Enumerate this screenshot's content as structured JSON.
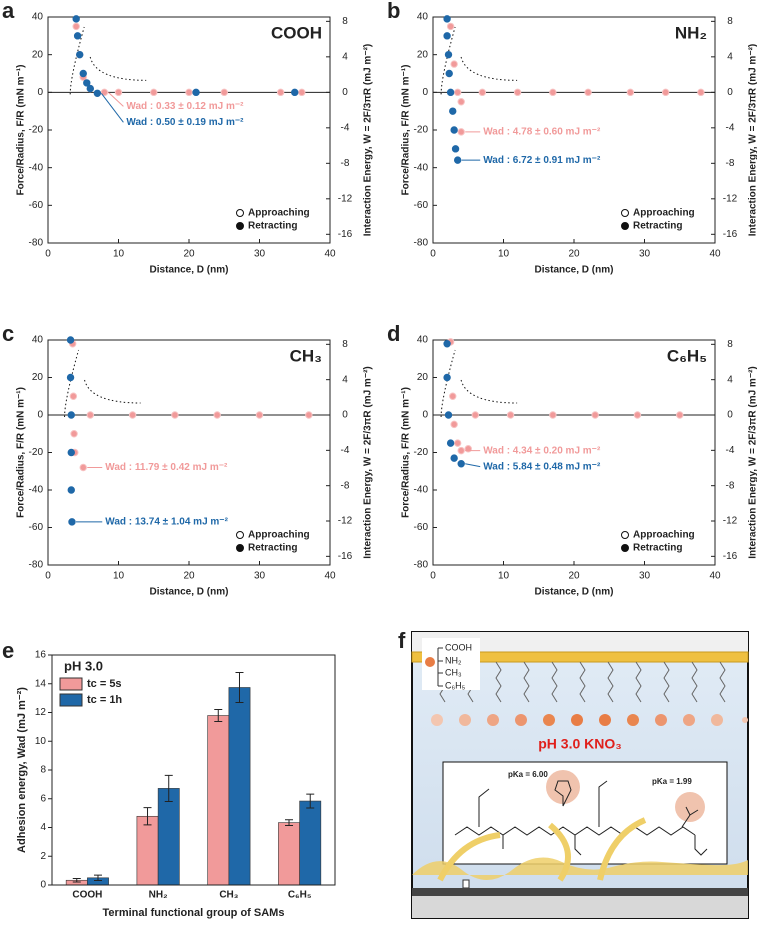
{
  "chart_data": [
    {
      "type": "scatter",
      "panel": "a",
      "label": "COOH",
      "xlabel": "Distance, D (nm)",
      "ylabel": "Force/Radius, F/R (mN m⁻¹)",
      "y2label": "Interaction Energy, W = 2F/3πR (mJ m⁻²)",
      "xlim": [
        0,
        40
      ],
      "xticks": [
        0,
        10,
        20,
        30,
        40
      ],
      "ylim": [
        -80,
        40
      ],
      "yticks": [
        -80,
        -60,
        -40,
        -20,
        0,
        20,
        40
      ],
      "y2lim": [
        -16.98,
        8.49
      ],
      "y2ticks": [
        -16,
        -12,
        -8,
        -4,
        0,
        4,
        8
      ],
      "legend": "lower right",
      "series": [
        {
          "name": "Approaching",
          "color": "#f19a9a",
          "x": [
            4,
            4.5,
            5,
            6,
            8,
            10,
            15,
            20,
            25,
            33,
            36
          ],
          "values": [
            35,
            20,
            8,
            2,
            0,
            0,
            0,
            0,
            0,
            0,
            0
          ]
        },
        {
          "name": "Retracting",
          "color": "#1f68a8",
          "x": [
            4,
            4.2,
            4.5,
            5,
            5.5,
            6,
            7,
            21,
            35
          ],
          "values": [
            39,
            30,
            20,
            10,
            5,
            2,
            -0.5,
            0,
            0
          ]
        }
      ],
      "annotations": [
        "Wad : 0.33 ± 0.12 mJ m⁻²",
        "Wad : 0.50 ± 0.19 mJ m⁻²"
      ]
    },
    {
      "type": "scatter",
      "panel": "b",
      "label": "NH₂",
      "xlabel": "Distance, D (nm)",
      "ylabel": "Force/Radius, F/R (mN m⁻¹)",
      "y2label": "Interaction Energy, W = 2F/3πR (mJ m⁻²)",
      "xlim": [
        0,
        40
      ],
      "xticks": [
        0,
        10,
        20,
        30,
        40
      ],
      "ylim": [
        -80,
        40
      ],
      "yticks": [
        -80,
        -60,
        -40,
        -20,
        0,
        20,
        40
      ],
      "y2lim": [
        -16.98,
        8.49
      ],
      "y2ticks": [
        -16,
        -12,
        -8,
        -4,
        0,
        4,
        8
      ],
      "legend": "lower right",
      "series": [
        {
          "name": "Approaching",
          "color": "#f19a9a",
          "x": [
            2.5,
            3,
            3.5,
            4,
            4,
            7,
            12,
            17,
            22,
            28,
            33,
            38
          ],
          "values": [
            35,
            15,
            0,
            -5,
            -21,
            0,
            0,
            0,
            0,
            0,
            0,
            0
          ]
        },
        {
          "name": "Retracting",
          "color": "#1f68a8",
          "x": [
            2,
            2,
            2.2,
            2.3,
            2.5,
            2.8,
            3,
            3.2,
            3.5
          ],
          "values": [
            39,
            30,
            20,
            10,
            0,
            -10,
            -20,
            -30,
            -36
          ]
        }
      ],
      "annotations": [
        "Wad : 4.78 ± 0.60 mJ m⁻²",
        "Wad : 6.72 ± 0.91 mJ m⁻²"
      ]
    },
    {
      "type": "scatter",
      "panel": "c",
      "label": "CH₃",
      "xlabel": "Distance, D (nm)",
      "ylabel": "Force/Radius, F/R (mN m⁻¹)",
      "y2label": "Interaction Energy, W = 2F/3πR (mJ m⁻²)",
      "xlim": [
        0,
        40
      ],
      "xticks": [
        0,
        10,
        20,
        30,
        40
      ],
      "ylim": [
        -80,
        40
      ],
      "yticks": [
        -80,
        -60,
        -40,
        -20,
        0,
        20,
        40
      ],
      "y2lim": [
        -16.98,
        8.49
      ],
      "y2ticks": [
        -16,
        -12,
        -8,
        -4,
        0,
        4,
        8
      ],
      "legend": "lower right",
      "series": [
        {
          "name": "Approaching",
          "color": "#f19a9a",
          "x": [
            3.5,
            3.6,
            3.7,
            3.8,
            5,
            6,
            12,
            18,
            24,
            30,
            37
          ],
          "values": [
            38,
            10,
            -10,
            -20,
            -28,
            0,
            0,
            0,
            0,
            0,
            0
          ]
        },
        {
          "name": "Retracting",
          "color": "#1f68a8",
          "x": [
            3.2,
            3.2,
            3.3,
            3.3,
            3.3,
            3.4
          ],
          "values": [
            40,
            20,
            0,
            -20,
            -40,
            -57
          ]
        }
      ],
      "annotations": [
        "Wad : 11.79 ± 0.42 mJ m⁻²",
        "Wad : 13.74 ± 1.04 mJ m⁻²"
      ]
    },
    {
      "type": "scatter",
      "panel": "d",
      "label": "C₆H₅",
      "xlabel": "Distance, D (nm)",
      "ylabel": "Force/Radius, F/R (mN m⁻¹)",
      "y2label": "Interaction Energy, W = 2F/3πR (mJ m⁻²)",
      "xlim": [
        0,
        40
      ],
      "xticks": [
        0,
        10,
        20,
        30,
        40
      ],
      "ylim": [
        -80,
        40
      ],
      "yticks": [
        -80,
        -60,
        -40,
        -20,
        0,
        20,
        40
      ],
      "y2lim": [
        -16.98,
        8.49
      ],
      "y2ticks": [
        -16,
        -12,
        -8,
        -4,
        0,
        4,
        8
      ],
      "legend": "lower right",
      "series": [
        {
          "name": "Approaching",
          "color": "#f19a9a",
          "x": [
            2.5,
            2.8,
            3,
            3.5,
            4,
            5,
            6,
            11,
            17,
            23,
            29,
            35
          ],
          "values": [
            39,
            10,
            -5,
            -15,
            -19,
            -18,
            0,
            0,
            0,
            0,
            0,
            0
          ]
        },
        {
          "name": "Retracting",
          "color": "#1f68a8",
          "x": [
            2,
            2,
            2.2,
            2.5,
            3,
            4
          ],
          "values": [
            38,
            20,
            0,
            -15,
            -23,
            -26
          ]
        }
      ],
      "annotations": [
        "Wad : 4.34 ± 0.20 mJ m⁻²",
        "Wad : 5.84 ± 0.48 mJ m⁻²"
      ]
    },
    {
      "type": "bar",
      "panel": "e",
      "annotation": "pH 3.0",
      "xlabel": "Terminal functional group of SAMs",
      "ylabel": "Adhesion energy, Wad (mJ m⁻²)",
      "categories": [
        "COOH",
        "NH₂",
        "CH₃",
        "C₆H₅"
      ],
      "ylim": [
        0,
        16
      ],
      "yticks": [
        0,
        2,
        4,
        6,
        8,
        10,
        12,
        14,
        16
      ],
      "legend": "upper left",
      "series": [
        {
          "name": "tc = 5s",
          "color": "#f19a9a",
          "values": [
            0.33,
            4.78,
            11.79,
            4.34
          ],
          "errors": [
            0.12,
            0.6,
            0.42,
            0.2
          ]
        },
        {
          "name": "tc = 1h",
          "color": "#1f68a8",
          "values": [
            0.5,
            6.72,
            13.74,
            5.84
          ],
          "errors": [
            0.19,
            0.91,
            1.04,
            0.48
          ]
        }
      ]
    }
  ],
  "diagram": {
    "panel": "f",
    "legend": [
      "COOH",
      "NH₂",
      "CH₃",
      "C₆H₅"
    ],
    "solution": "pH 3.0 KNO₃",
    "pka1": "pKa = 6.00",
    "pka2": "pKa = 1.99"
  }
}
